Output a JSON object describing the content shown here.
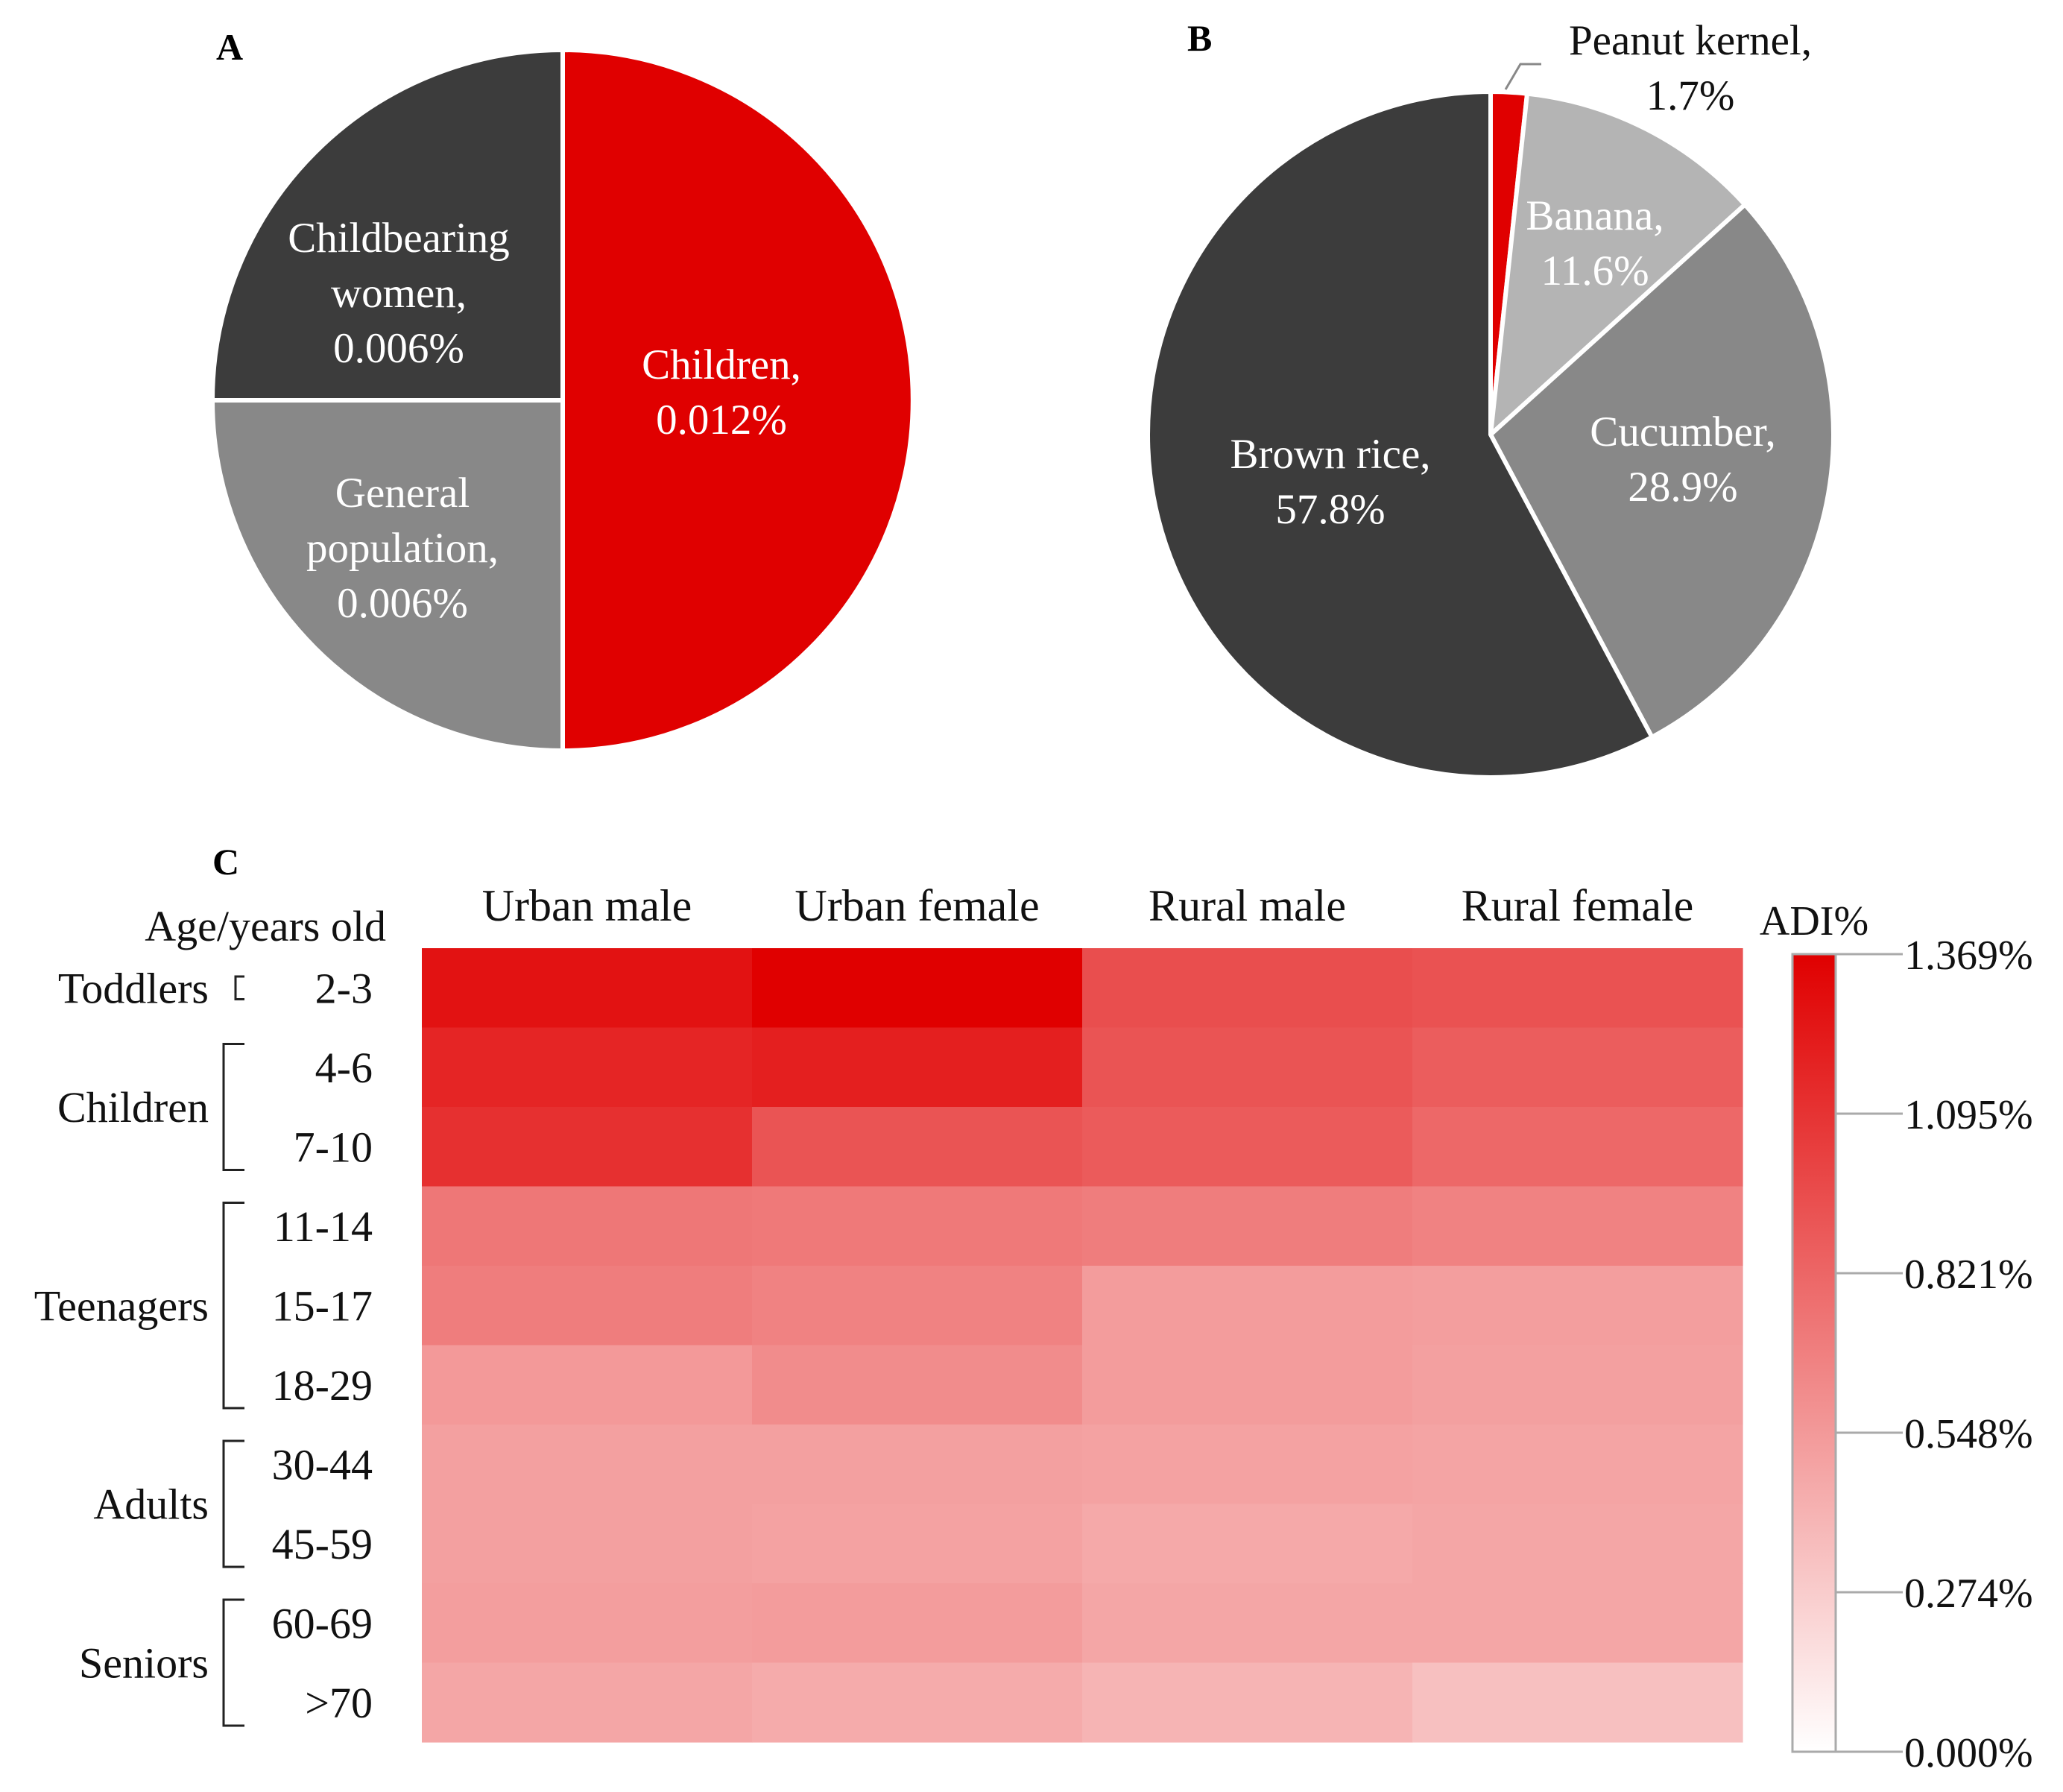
{
  "panels": {
    "a": "A",
    "b": "B",
    "c": "C"
  },
  "colors": {
    "red": "#e00000",
    "dark": "#3c3c3c",
    "mid": "#888888",
    "light": "#b4b4b4"
  },
  "chart_data": [
    {
      "type": "pie",
      "panel": "A",
      "title": "",
      "slices": [
        {
          "name": "Children,",
          "value_label": "0.012%",
          "value": 0.012,
          "color": "#e00000",
          "text_color": "#ffffff"
        },
        {
          "name": "General population,",
          "value_label": "0.006%",
          "value": 0.006,
          "color": "#888888",
          "text_color": "#ffffff"
        },
        {
          "name": "Childbearing women,",
          "value_label": "0.006%",
          "value": 0.006,
          "color": "#3c3c3c",
          "text_color": "#ffffff"
        }
      ]
    },
    {
      "type": "pie",
      "panel": "B",
      "title": "",
      "slices": [
        {
          "name": "Peanut kernel,",
          "value_label": "1.7%",
          "value": 1.7,
          "color": "#e00000",
          "text_color": "#111111"
        },
        {
          "name": "Banana,",
          "value_label": "11.6%",
          "value": 11.6,
          "color": "#b4b4b4",
          "text_color": "#ffffff"
        },
        {
          "name": "Cucumber,",
          "value_label": "28.9%",
          "value": 28.9,
          "color": "#888888",
          "text_color": "#ffffff"
        },
        {
          "name": "Brown rice,",
          "value_label": "57.8%",
          "value": 57.8,
          "color": "#3c3c3c",
          "text_color": "#ffffff"
        }
      ]
    },
    {
      "type": "heatmap",
      "panel": "C",
      "row_axis_title": "Age/years old",
      "columns": [
        "Urban male",
        "Urban female",
        "Rural male",
        "Rural female"
      ],
      "rows": [
        "2-3",
        "4-6",
        "7-10",
        "11-14",
        "15-17",
        "18-29",
        "30-44",
        "45-59",
        "60-69",
        ">70"
      ],
      "groups": [
        {
          "name": "Toddlers",
          "from": 0,
          "to": 0
        },
        {
          "name": "Children",
          "from": 1,
          "to": 2
        },
        {
          "name": "Teenagers",
          "from": 3,
          "to": 5
        },
        {
          "name": "Adults",
          "from": 6,
          "to": 7
        },
        {
          "name": "Seniors",
          "from": 8,
          "to": 9
        }
      ],
      "values": [
        [
          1.27,
          1.369,
          0.95,
          0.93
        ],
        [
          1.17,
          1.2,
          0.92,
          0.87
        ],
        [
          1.11,
          0.92,
          0.88,
          0.81
        ],
        [
          0.73,
          0.72,
          0.7,
          0.67
        ],
        [
          0.7,
          0.67,
          0.53,
          0.52
        ],
        [
          0.55,
          0.62,
          0.53,
          0.51
        ],
        [
          0.51,
          0.51,
          0.5,
          0.49
        ],
        [
          0.51,
          0.5,
          0.46,
          0.48
        ],
        [
          0.52,
          0.53,
          0.48,
          0.48
        ],
        [
          0.48,
          0.45,
          0.4,
          0.34
        ]
      ],
      "colorbar": {
        "title": "ADI%",
        "min": 0,
        "max": 1.369,
        "ticks": [
          "0.000%",
          "0.274%",
          "0.548%",
          "0.821%",
          "1.095%",
          "1.369%"
        ],
        "color_low": "#ffffff",
        "color_high": "#e00000"
      }
    }
  ]
}
